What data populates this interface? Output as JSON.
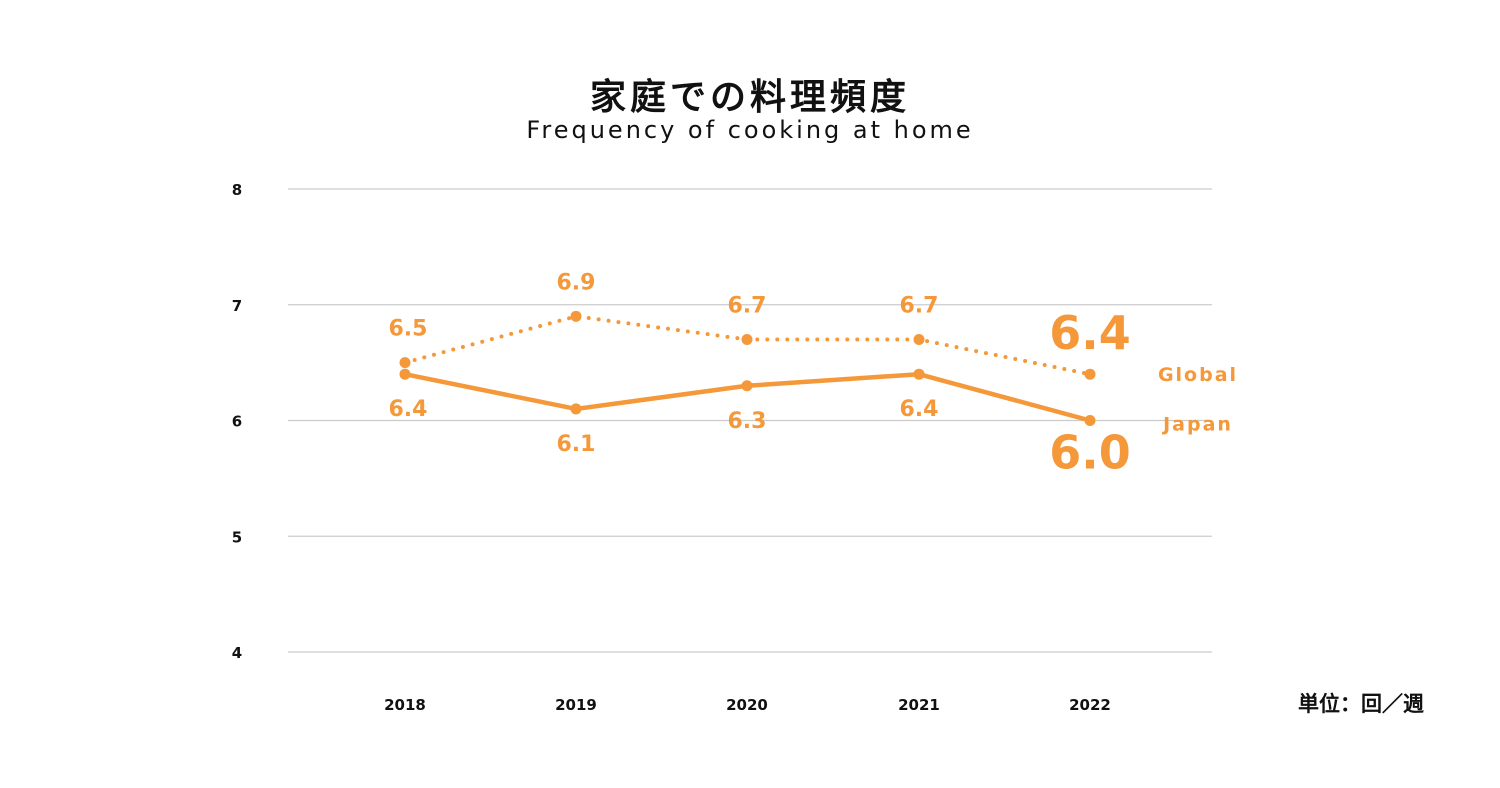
{
  "chart_data": {
    "type": "line",
    "title": "家庭での料理頻度",
    "subtitle": "Frequency of cooking at home",
    "unit_label": "単位：回／週",
    "x": [
      "2018",
      "2019",
      "2020",
      "2021",
      "2022"
    ],
    "ylim": [
      4,
      8
    ],
    "yticks": [
      "4",
      "5",
      "6",
      "7",
      "8"
    ],
    "grid": true,
    "colors": {
      "series": "#F4983A",
      "grid": "#CCCCCC",
      "text": "#111111"
    },
    "series": [
      {
        "name": "Global",
        "style": "dotted",
        "values": [
          6.5,
          6.9,
          6.7,
          6.7,
          6.4
        ],
        "labels": [
          "6.5",
          "6.9",
          "6.7",
          "6.7",
          "6.4"
        ]
      },
      {
        "name": "Japan",
        "style": "solid",
        "values": [
          6.4,
          6.1,
          6.3,
          6.4,
          6.0
        ],
        "labels": [
          "6.4",
          "6.1",
          "6.3",
          "6.4",
          "6.0"
        ]
      }
    ]
  }
}
